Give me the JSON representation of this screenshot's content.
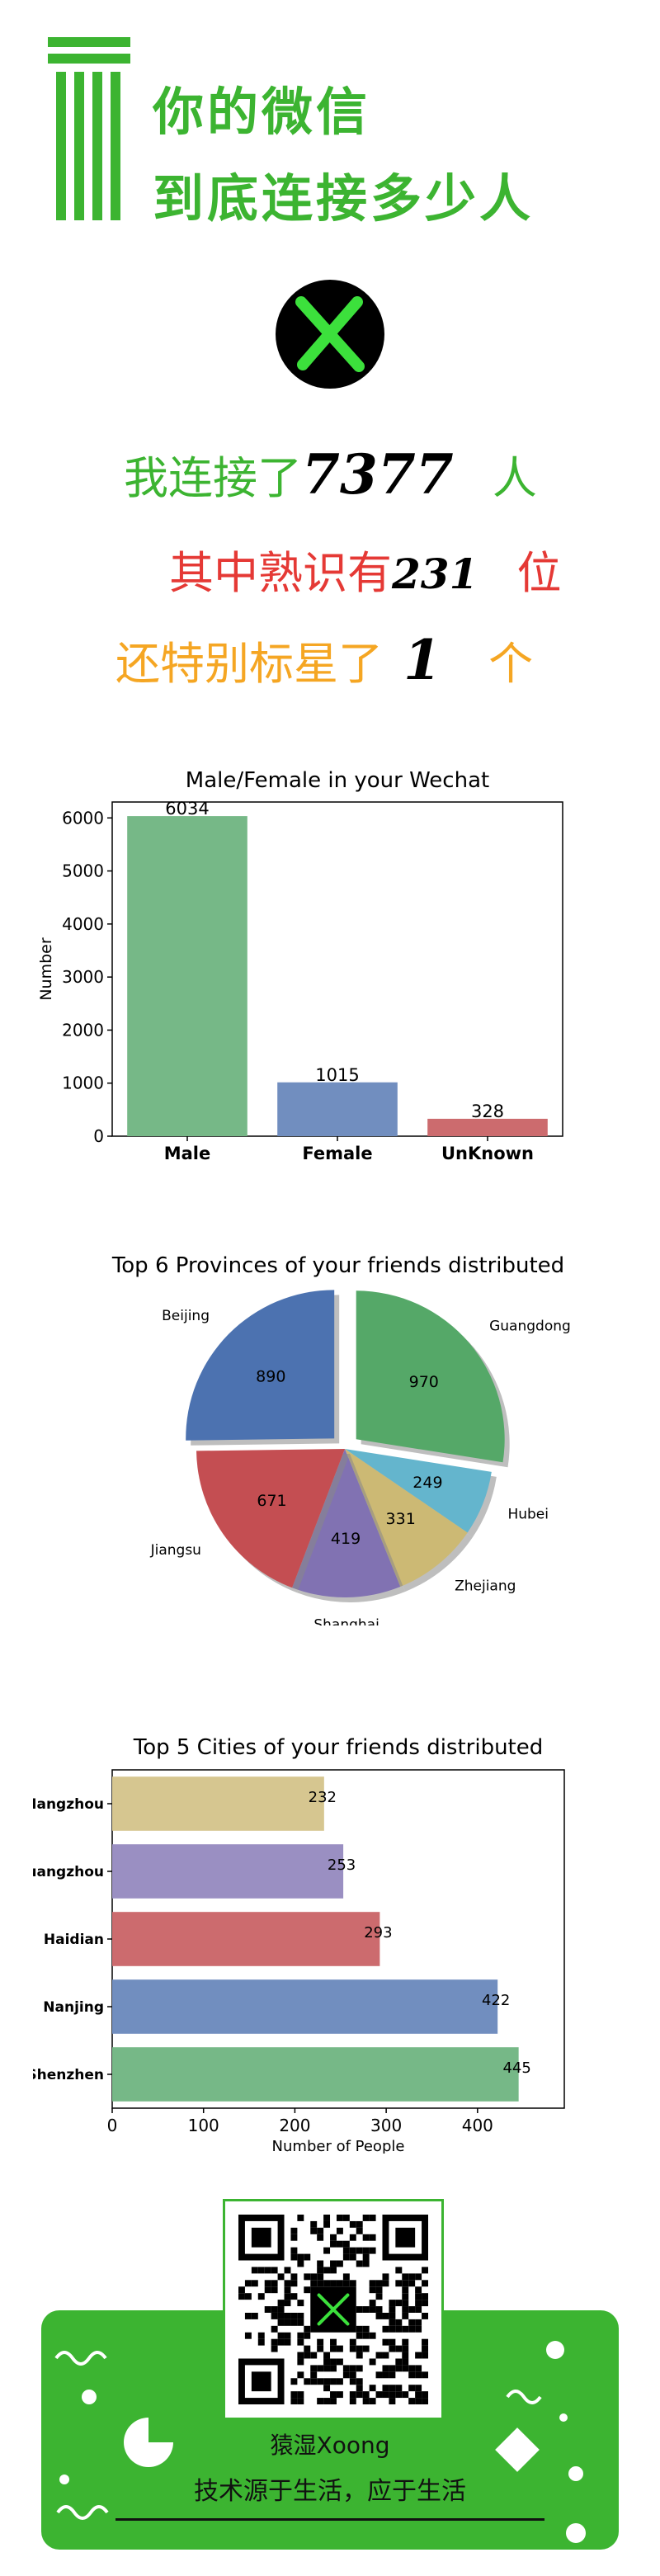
{
  "header": {
    "title_line1": "你的微信",
    "title_line2": "到底连接多少人",
    "brand_color": "#3cb431"
  },
  "stats": {
    "connected_prefix": "我连接了",
    "connected_value": "7377",
    "connected_suffix": "人",
    "familiar_prefix": "其中熟识有",
    "familiar_value": "231",
    "familiar_suffix": "位",
    "starred_prefix": "还特别标星了",
    "starred_value": "1",
    "starred_suffix": "个",
    "colors": {
      "line1": "#3cb431",
      "line2": "#e53935",
      "line3": "#f5a623"
    }
  },
  "chart_data": [
    {
      "type": "bar",
      "title": "Male/Female in your Wechat",
      "ylabel": "Number",
      "xlabel": "",
      "categories": [
        "Male",
        "Female",
        "UnKnown"
      ],
      "values": [
        6034,
        1015,
        328
      ],
      "colors": [
        "#76b887",
        "#718ebf",
        "#cc6b6e"
      ],
      "ylim": [
        0,
        6300
      ],
      "yticks": [
        0,
        1000,
        2000,
        3000,
        4000,
        5000,
        6000
      ],
      "grid": false
    },
    {
      "type": "pie",
      "title": "Top 6 Provinces of your friends distributed",
      "categories": [
        "Guangdong",
        "Hubei",
        "Zhejiang",
        "Shanghai",
        "Jiangsu",
        "Beijing"
      ],
      "values": [
        970,
        249,
        331,
        419,
        671,
        890
      ],
      "colors": [
        "#55a868",
        "#64b5cd",
        "#ccb974",
        "#8172b2",
        "#c44e52",
        "#4c72b0"
      ],
      "exploded": [
        "Guangdong",
        "Beijing"
      ]
    },
    {
      "type": "bar",
      "orientation": "horizontal",
      "title": "Top 5 Cities of your friends distributed",
      "xlabel": "Number of People",
      "ylabel": "",
      "categories": [
        "Shenzhen",
        "Nanjing",
        "Haidian",
        "Guangzhou",
        "Hangzhou"
      ],
      "tick_labels": [
        "Shenzhen",
        "Nanjing",
        "Haidian",
        "uangzhou",
        "Hangzhou"
      ],
      "values": [
        445,
        422,
        293,
        253,
        232
      ],
      "colors": [
        "#76b887",
        "#718ebf",
        "#cc6b6e",
        "#9a8fc2",
        "#d6c690"
      ],
      "xlim": [
        0,
        495
      ],
      "xticks": [
        0,
        100,
        200,
        300,
        400
      ],
      "grid": false
    }
  ],
  "footer": {
    "name": "猿湿Xoong",
    "slogan": "技术源于生活，应于生活",
    "bg_color": "#3cb431",
    "qr_icon": "qr-code-icon"
  }
}
